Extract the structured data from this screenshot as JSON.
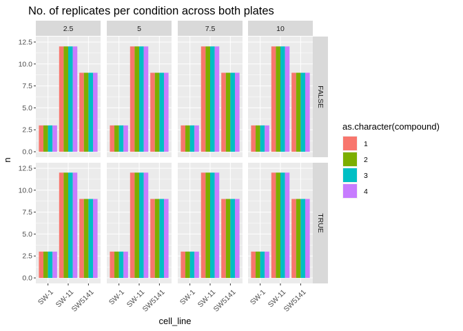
{
  "chart_data": {
    "type": "bar",
    "title": "No. of replicates per condition across both plates",
    "xlabel": "cell_line",
    "ylabel": "n",
    "ylim": [
      0,
      12.5
    ],
    "y_ticks": [
      "0.0",
      "2.5",
      "5.0",
      "7.5",
      "10.0",
      "12.5"
    ],
    "y_tick_values": [
      0,
      2.5,
      5,
      7.5,
      10,
      12.5
    ],
    "grid": true,
    "facet_columns": [
      "2.5",
      "5",
      "7.5",
      "10"
    ],
    "facet_rows": [
      "FALSE",
      "TRUE"
    ],
    "categories": [
      "SW-1",
      "SW-11",
      "SW5141"
    ],
    "legend": {
      "title": "as.character(compound)",
      "position": "right",
      "entries": [
        "1",
        "2",
        "3",
        "4"
      ]
    },
    "series": [
      {
        "name": "1",
        "color": "#F8766D",
        "values": [
          3,
          12,
          9
        ]
      },
      {
        "name": "2",
        "color": "#7CAE00",
        "values": [
          3,
          12,
          9
        ]
      },
      {
        "name": "3",
        "color": "#00BFC4",
        "values": [
          3,
          12,
          9
        ]
      },
      {
        "name": "4",
        "color": "#C77CFF",
        "values": [
          3,
          12,
          9
        ]
      }
    ],
    "note_values_identical_across_facets": true
  }
}
